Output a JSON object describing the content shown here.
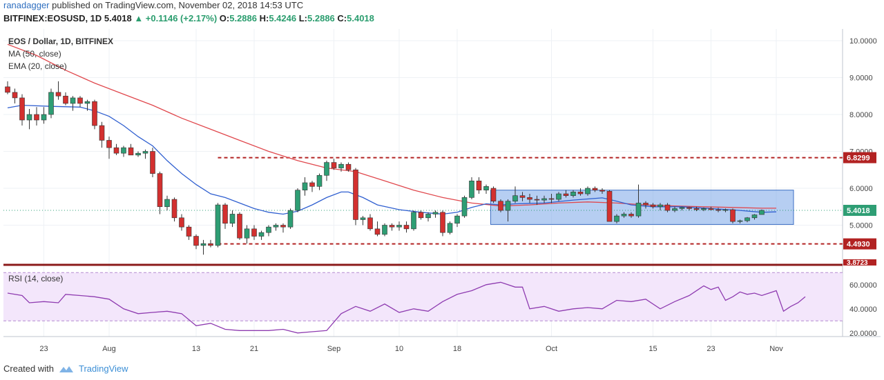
{
  "header": {
    "author": "ranadagger",
    "published": "published on TradingView.com, November 02, 2018 14:53 UTC",
    "symbol": "BITFINEX:EOSUSD, 1D",
    "last": "5.4018",
    "change": "▲ +0.1146 (+2.17%)",
    "o_label": "O:",
    "o": "5.2886",
    "h_label": "H:",
    "h": "5.4246",
    "l_label": "L:",
    "l": "5.2886",
    "c_label": "C:",
    "c": "5.4018"
  },
  "legend": {
    "title": "EOS / Dollar, 1D, BITFINEX",
    "ma": "MA (50, close)",
    "ema": "EMA (20, close)",
    "rsi": "RSI (14, close)"
  },
  "footer": {
    "created_with": "Created with",
    "brand": "TradingView"
  },
  "colors": {
    "up": "#2e9e74",
    "down": "#d3302f",
    "ma": "#2f5fd0",
    "ema": "#e0474c",
    "rsi": "#8e3bb0",
    "level": "#b22222",
    "box": "#6f9ee6"
  },
  "chart_data": [
    {
      "type": "candlestick",
      "title": "EOS / Dollar, 1D, BITFINEX",
      "ylim": [
        3.8,
        10.0
      ],
      "y_ticks": [
        "10.0000",
        "9.0000",
        "8.0000",
        "7.0000",
        "6.0000",
        "5.0000"
      ],
      "x_ticks": [
        {
          "label": "23",
          "index": 5
        },
        {
          "label": "Aug",
          "index": 14
        },
        {
          "label": "13",
          "index": 26
        },
        {
          "label": "21",
          "index": 34
        },
        {
          "label": "Sep",
          "index": 45
        },
        {
          "label": "10",
          "index": 54
        },
        {
          "label": "18",
          "index": 62
        },
        {
          "label": "Oct",
          "index": 75
        },
        {
          "label": "15",
          "index": 89
        },
        {
          "label": "23",
          "index": 97
        },
        {
          "label": "Nov",
          "index": 106
        }
      ],
      "ohlc": [
        [
          8.75,
          8.9,
          8.55,
          8.6
        ],
        [
          8.6,
          8.7,
          8.3,
          8.45
        ],
        [
          8.45,
          8.55,
          7.7,
          7.85
        ],
        [
          7.85,
          8.15,
          7.6,
          8.0
        ],
        [
          8.0,
          8.2,
          7.7,
          7.85
        ],
        [
          7.85,
          8.2,
          7.75,
          8.0
        ],
        [
          8.0,
          8.7,
          7.9,
          8.6
        ],
        [
          8.6,
          8.9,
          8.4,
          8.5
        ],
        [
          8.5,
          8.6,
          8.25,
          8.3
        ],
        [
          8.3,
          8.5,
          8.1,
          8.45
        ],
        [
          8.45,
          8.5,
          8.2,
          8.3
        ],
        [
          8.3,
          8.4,
          8.1,
          8.35
        ],
        [
          8.35,
          8.4,
          7.6,
          7.7
        ],
        [
          7.7,
          7.8,
          7.1,
          7.3
        ],
        [
          7.3,
          7.4,
          6.8,
          7.1
        ],
        [
          7.1,
          7.2,
          6.9,
          6.95
        ],
        [
          6.95,
          7.15,
          6.85,
          7.1
        ],
        [
          7.1,
          7.2,
          6.9,
          6.9
        ],
        [
          6.9,
          7.0,
          6.85,
          6.95
        ],
        [
          6.95,
          7.05,
          6.8,
          7.0
        ],
        [
          7.0,
          7.1,
          6.3,
          6.4
        ],
        [
          6.4,
          6.45,
          5.3,
          5.5
        ],
        [
          5.5,
          5.8,
          5.4,
          5.7
        ],
        [
          5.7,
          5.75,
          5.1,
          5.2
        ],
        [
          5.2,
          5.3,
          4.85,
          4.95
        ],
        [
          4.95,
          5.0,
          4.6,
          4.7
        ],
        [
          4.7,
          4.75,
          4.35,
          4.45
        ],
        [
          4.45,
          4.6,
          4.2,
          4.5
        ],
        [
          4.5,
          4.6,
          4.4,
          4.45
        ],
        [
          4.45,
          5.6,
          4.4,
          5.55
        ],
        [
          5.55,
          5.6,
          4.9,
          5.05
        ],
        [
          5.05,
          5.4,
          4.95,
          5.3
        ],
        [
          5.3,
          5.35,
          4.6,
          4.65
        ],
        [
          4.65,
          5.0,
          4.5,
          4.9
        ],
        [
          4.9,
          5.0,
          4.6,
          4.7
        ],
        [
          4.7,
          4.85,
          4.6,
          4.8
        ],
        [
          4.8,
          5.0,
          4.7,
          4.95
        ],
        [
          4.95,
          5.05,
          4.85,
          5.0
        ],
        [
          5.0,
          5.05,
          4.8,
          4.95
        ],
        [
          4.95,
          5.45,
          4.9,
          5.4
        ],
        [
          5.4,
          6.0,
          5.35,
          5.95
        ],
        [
          5.95,
          6.3,
          5.8,
          6.15
        ],
        [
          6.15,
          6.2,
          5.9,
          6.05
        ],
        [
          6.05,
          6.4,
          5.95,
          6.35
        ],
        [
          6.35,
          6.75,
          6.2,
          6.7
        ],
        [
          6.7,
          6.8,
          6.5,
          6.55
        ],
        [
          6.55,
          6.7,
          6.45,
          6.65
        ],
        [
          6.65,
          6.7,
          6.45,
          6.5
        ],
        [
          6.5,
          6.55,
          5.0,
          5.15
        ],
        [
          5.15,
          5.25,
          5.0,
          5.2
        ],
        [
          5.2,
          5.3,
          4.85,
          4.9
        ],
        [
          4.9,
          5.1,
          4.7,
          4.75
        ],
        [
          4.75,
          5.05,
          4.7,
          5.0
        ],
        [
          5.0,
          5.05,
          4.85,
          4.95
        ],
        [
          4.95,
          5.1,
          4.85,
          5.0
        ],
        [
          5.0,
          5.1,
          4.8,
          4.9
        ],
        [
          4.9,
          5.4,
          4.85,
          5.35
        ],
        [
          5.35,
          5.4,
          5.15,
          5.2
        ],
        [
          5.2,
          5.35,
          5.1,
          5.3
        ],
        [
          5.3,
          5.4,
          5.2,
          5.35
        ],
        [
          5.35,
          5.4,
          4.7,
          4.8
        ],
        [
          4.8,
          5.1,
          4.75,
          5.05
        ],
        [
          5.05,
          5.3,
          4.95,
          5.25
        ],
        [
          5.25,
          5.8,
          5.2,
          5.75
        ],
        [
          5.75,
          6.3,
          5.7,
          6.2
        ],
        [
          6.2,
          6.3,
          5.85,
          5.95
        ],
        [
          5.95,
          6.1,
          5.85,
          6.05
        ],
        [
          6.0,
          6.05,
          5.6,
          5.65
        ],
        [
          5.65,
          5.7,
          5.35,
          5.4
        ],
        [
          5.4,
          5.7,
          5.1,
          5.65
        ],
        [
          5.65,
          6.05,
          5.6,
          5.8
        ],
        [
          5.8,
          5.9,
          5.65,
          5.75
        ],
        [
          5.75,
          5.85,
          5.6,
          5.7
        ],
        [
          5.7,
          5.8,
          5.55,
          5.68
        ],
        [
          5.68,
          5.8,
          5.6,
          5.72
        ],
        [
          5.72,
          5.85,
          5.6,
          5.7
        ],
        [
          5.7,
          5.9,
          5.65,
          5.85
        ],
        [
          5.85,
          5.95,
          5.75,
          5.8
        ],
        [
          5.8,
          5.95,
          5.75,
          5.9
        ],
        [
          5.9,
          6.0,
          5.8,
          5.85
        ],
        [
          5.85,
          6.05,
          5.8,
          6.0
        ],
        [
          6.0,
          6.05,
          5.9,
          5.95
        ],
        [
          5.95,
          6.0,
          5.85,
          5.92
        ],
        [
          5.92,
          5.95,
          5.1,
          5.1
        ],
        [
          5.1,
          5.3,
          5.05,
          5.25
        ],
        [
          5.25,
          5.35,
          5.2,
          5.3
        ],
        [
          5.3,
          5.35,
          5.2,
          5.25
        ],
        [
          5.25,
          6.1,
          5.2,
          5.6
        ],
        [
          5.6,
          5.65,
          5.45,
          5.55
        ],
        [
          5.55,
          5.6,
          5.45,
          5.5
        ],
        [
          5.5,
          5.6,
          5.4,
          5.55
        ],
        [
          5.55,
          5.6,
          5.35,
          5.4
        ],
        [
          5.4,
          5.5,
          5.35,
          5.45
        ],
        [
          5.45,
          5.5,
          5.4,
          5.48
        ],
        [
          5.48,
          5.5,
          5.4,
          5.45
        ],
        [
          5.45,
          5.5,
          5.38,
          5.42
        ],
        [
          5.42,
          5.48,
          5.38,
          5.45
        ],
        [
          5.45,
          5.5,
          5.4,
          5.42
        ],
        [
          5.42,
          5.47,
          5.35,
          5.4
        ],
        [
          5.4,
          5.45,
          5.35,
          5.42
        ],
        [
          5.42,
          5.45,
          5.05,
          5.1
        ],
        [
          5.1,
          5.15,
          5.05,
          5.12
        ],
        [
          5.12,
          5.22,
          5.08,
          5.2
        ],
        [
          5.2,
          5.3,
          5.15,
          5.28
        ],
        [
          5.2886,
          5.4246,
          5.2886,
          5.4018
        ]
      ],
      "ema20": [
        [
          0,
          8.18
        ],
        [
          2,
          8.25
        ],
        [
          6,
          8.22
        ],
        [
          10,
          8.2
        ],
        [
          12,
          8.1
        ],
        [
          14,
          7.95
        ],
        [
          16,
          7.7
        ],
        [
          18,
          7.4
        ],
        [
          20,
          7.15
        ],
        [
          22,
          6.75
        ],
        [
          24,
          6.4
        ],
        [
          26,
          6.1
        ],
        [
          28,
          5.85
        ],
        [
          30,
          5.75
        ],
        [
          32,
          5.6
        ],
        [
          34,
          5.45
        ],
        [
          36,
          5.35
        ],
        [
          38,
          5.3
        ],
        [
          40,
          5.38
        ],
        [
          42,
          5.55
        ],
        [
          44,
          5.75
        ],
        [
          46,
          5.9
        ],
        [
          47,
          5.9
        ],
        [
          49,
          5.75
        ],
        [
          51,
          5.55
        ],
        [
          54,
          5.42
        ],
        [
          57,
          5.35
        ],
        [
          60,
          5.3
        ],
        [
          62,
          5.35
        ],
        [
          64,
          5.48
        ],
        [
          66,
          5.58
        ],
        [
          68,
          5.55
        ],
        [
          70,
          5.58
        ],
        [
          74,
          5.6
        ],
        [
          78,
          5.68
        ],
        [
          82,
          5.74
        ],
        [
          84,
          5.65
        ],
        [
          86,
          5.55
        ],
        [
          89,
          5.5
        ],
        [
          93,
          5.5
        ],
        [
          97,
          5.45
        ],
        [
          101,
          5.4
        ],
        [
          104,
          5.35
        ],
        [
          106,
          5.36
        ]
      ],
      "ma50": [
        [
          0,
          9.9
        ],
        [
          4,
          9.6
        ],
        [
          8,
          9.2
        ],
        [
          12,
          8.85
        ],
        [
          16,
          8.55
        ],
        [
          20,
          8.25
        ],
        [
          24,
          7.9
        ],
        [
          28,
          7.6
        ],
        [
          32,
          7.3
        ],
        [
          36,
          7.0
        ],
        [
          40,
          6.75
        ],
        [
          44,
          6.55
        ],
        [
          48,
          6.45
        ],
        [
          52,
          6.2
        ],
        [
          56,
          5.95
        ],
        [
          60,
          5.75
        ],
        [
          64,
          5.6
        ],
        [
          68,
          5.52
        ],
        [
          72,
          5.55
        ],
        [
          76,
          5.6
        ],
        [
          80,
          5.63
        ],
        [
          84,
          5.6
        ],
        [
          88,
          5.55
        ],
        [
          92,
          5.52
        ],
        [
          96,
          5.5
        ],
        [
          100,
          5.48
        ],
        [
          104,
          5.46
        ],
        [
          106,
          5.46
        ]
      ],
      "levels": [
        {
          "value": 6.8299,
          "label": "6.8299",
          "from_index": 29
        },
        {
          "value": 4.493,
          "label": "4.4930",
          "from_index": 29
        }
      ],
      "last_price": {
        "value": 5.4018,
        "label": "5.4018"
      },
      "bottom_level": {
        "value": 3.8723,
        "label": "3.8723"
      },
      "range_box": {
        "from_index": 67,
        "to_index": 108,
        "top": 5.95,
        "bottom": 5.02
      }
    },
    {
      "type": "line",
      "title": "RSI (14, close)",
      "ylim": [
        17,
        73
      ],
      "y_ticks": [
        "60.0000",
        "40.0000",
        "20.0000"
      ],
      "band": [
        30,
        70
      ],
      "values": [
        [
          0,
          53
        ],
        [
          2,
          51
        ],
        [
          3,
          45
        ],
        [
          5,
          46
        ],
        [
          7,
          45
        ],
        [
          8,
          52
        ],
        [
          10,
          51
        ],
        [
          12,
          50
        ],
        [
          14,
          48
        ],
        [
          16,
          40
        ],
        [
          18,
          36
        ],
        [
          20,
          37
        ],
        [
          22,
          38
        ],
        [
          24,
          36
        ],
        [
          26,
          26
        ],
        [
          28,
          28
        ],
        [
          30,
          23
        ],
        [
          32,
          22
        ],
        [
          34,
          22
        ],
        [
          36,
          22
        ],
        [
          38,
          23
        ],
        [
          40,
          20
        ],
        [
          42,
          21
        ],
        [
          44,
          22
        ],
        [
          46,
          36
        ],
        [
          48,
          42
        ],
        [
          50,
          38
        ],
        [
          52,
          44
        ],
        [
          54,
          37
        ],
        [
          56,
          40
        ],
        [
          58,
          38
        ],
        [
          60,
          46
        ],
        [
          62,
          52
        ],
        [
          64,
          55
        ],
        [
          66,
          60
        ],
        [
          68,
          62
        ],
        [
          70,
          58
        ],
        [
          71,
          58
        ],
        [
          72,
          40
        ],
        [
          74,
          42
        ],
        [
          76,
          38
        ],
        [
          78,
          40
        ],
        [
          80,
          41
        ],
        [
          82,
          40
        ],
        [
          84,
          47
        ],
        [
          86,
          46
        ],
        [
          88,
          48
        ],
        [
          90,
          40
        ],
        [
          92,
          46
        ],
        [
          94,
          51
        ],
        [
          96,
          59
        ],
        [
          97,
          56
        ],
        [
          98,
          58
        ],
        [
          99,
          47
        ],
        [
          100,
          50
        ],
        [
          101,
          54
        ],
        [
          102,
          52
        ],
        [
          103,
          53
        ],
        [
          104,
          51
        ],
        [
          105,
          53
        ],
        [
          106,
          55
        ],
        [
          107,
          38
        ],
        [
          108,
          42
        ],
        [
          109,
          45
        ],
        [
          110,
          50
        ]
      ]
    }
  ]
}
